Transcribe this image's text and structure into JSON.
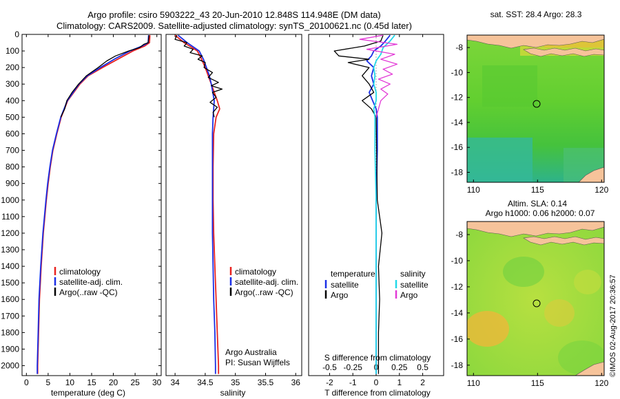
{
  "title": {
    "line1": "Argo profile: csiro 5903222_43 20-Jun-2010 12.848S 114.948E (DM data)",
    "line2": "Climatology: CARS2009. Satellite-adjusted climatology: synTS_20100621.nc (0.45d later)"
  },
  "colors": {
    "climatology": "#e8211e",
    "satellite": "#1a2ee6",
    "argo": "#000000",
    "sal_satellite": "#22d8e8",
    "sal_argo": "#e23ad6"
  },
  "depth_axis": {
    "label": "",
    "range": [
      2060,
      0
    ],
    "ticks": [
      0,
      100,
      200,
      300,
      400,
      500,
      600,
      700,
      800,
      900,
      1000,
      1100,
      1200,
      1300,
      1400,
      1500,
      1600,
      1700,
      1800,
      1900,
      2000
    ]
  },
  "chart_data": [
    {
      "type": "line",
      "id": "temperature",
      "xlabel": "temperature (deg C)",
      "ylabel": "",
      "xlim": [
        -1,
        31
      ],
      "ylim": [
        2060,
        0
      ],
      "xticks": [
        0,
        5,
        10,
        15,
        20,
        25,
        30
      ],
      "legend": [
        "climatology",
        "satellite-adj. clim.",
        "Argo(..raw -QC)"
      ],
      "series": [
        {
          "name": "climatology",
          "depth": [
            5,
            50,
            70,
            100,
            150,
            200,
            250,
            300,
            400,
            500,
            600,
            700,
            800,
            900,
            1000,
            1200,
            1400,
            1600,
            1800,
            2000,
            2050
          ],
          "values": [
            28.4,
            28.3,
            27.2,
            24.5,
            21,
            17.5,
            14.2,
            12.3,
            9.5,
            8.0,
            7.0,
            6.1,
            5.5,
            5.0,
            4.6,
            3.9,
            3.4,
            3.0,
            2.8,
            2.6,
            2.6
          ]
        },
        {
          "name": "satellite-adj. clim.",
          "depth": [
            5,
            50,
            70,
            100,
            150,
            200,
            250,
            300,
            400,
            500,
            600,
            700,
            800,
            900,
            1000,
            1200,
            1400,
            1600,
            1800,
            2000,
            2050
          ],
          "values": [
            28.1,
            28.0,
            26.6,
            23.8,
            20.2,
            17.0,
            14.0,
            12.1,
            9.4,
            7.9,
            6.9,
            6.0,
            5.4,
            4.9,
            4.5,
            3.8,
            3.3,
            2.9,
            2.7,
            2.5,
            2.5
          ]
        },
        {
          "name": "Argo(..raw -QC)",
          "depth": [
            5,
            50,
            60,
            80,
            100,
            130,
            160,
            200,
            250,
            300,
            350,
            400,
            450,
            500
          ],
          "values": [
            28.2,
            28.0,
            27.0,
            26.0,
            23.5,
            20.5,
            18.5,
            16.5,
            13.8,
            12.0,
            10.5,
            9.3,
            8.8,
            7.9
          ]
        }
      ]
    },
    {
      "type": "line",
      "id": "salinity",
      "xlabel": "salinity",
      "ylabel": "",
      "xlim": [
        33.85,
        36.1
      ],
      "ylim": [
        2060,
        0
      ],
      "xticks": [
        34,
        34.5,
        35,
        35.5,
        36
      ],
      "legend": [
        "climatology",
        "satellite-adj. clim.",
        "Argo(..raw -QC)"
      ],
      "annotation": [
        "Argo Australia",
        "PI: Susan Wijffels"
      ],
      "series": [
        {
          "name": "climatology",
          "depth": [
            5,
            50,
            100,
            150,
            200,
            250,
            300,
            400,
            450,
            500,
            600,
            800,
            1000,
            1200,
            1400,
            1600,
            1800,
            2000,
            2050
          ],
          "values": [
            34.0,
            34.15,
            34.37,
            34.44,
            34.5,
            34.55,
            34.6,
            34.7,
            34.74,
            34.68,
            34.64,
            34.63,
            34.63,
            34.64,
            34.66,
            34.68,
            34.7,
            34.72,
            34.72
          ]
        },
        {
          "name": "satellite-adj. clim.",
          "depth": [
            5,
            50,
            100,
            150,
            200,
            250,
            300,
            400,
            500,
            600,
            800,
            1000,
            1200,
            1400,
            1600,
            1800,
            2000,
            2050
          ],
          "values": [
            34.05,
            34.2,
            34.4,
            34.47,
            34.52,
            34.57,
            34.6,
            34.65,
            34.63,
            34.62,
            34.62,
            34.62,
            34.62,
            34.63,
            34.64,
            34.66,
            34.67,
            34.67
          ]
        },
        {
          "name": "Argo(..raw -QC)",
          "depth": [
            5,
            30,
            50,
            70,
            90,
            110,
            130,
            150,
            170,
            200,
            230,
            260,
            290,
            310,
            330,
            350,
            380,
            410,
            440,
            470,
            500
          ],
          "values": [
            34.03,
            34.0,
            34.2,
            34.15,
            34.3,
            34.25,
            34.45,
            34.38,
            34.5,
            34.48,
            34.62,
            34.55,
            34.72,
            34.6,
            34.78,
            34.62,
            34.68,
            34.58,
            34.7,
            34.63,
            34.65
          ]
        }
      ]
    },
    {
      "type": "line",
      "id": "difference",
      "xlabel": "T difference from climatology",
      "xlabel_top": "S difference from climatology",
      "ylabel": "",
      "xlim": [
        -2.9,
        2.9
      ],
      "ylim": [
        2060,
        0
      ],
      "xticks": [
        -2,
        -1,
        0,
        1,
        2
      ],
      "xtick_labels_S": [
        "-0.5",
        "-0.25",
        "0",
        "0.25",
        "0.5"
      ],
      "xtick_positions_S": [
        -2,
        -1,
        0,
        1,
        2
      ],
      "legend_headers": [
        "temperature",
        "salinity"
      ],
      "legend_T": [
        "satellite",
        "Argo"
      ],
      "legend_S": [
        "satellite",
        "Argo"
      ],
      "series": [
        {
          "name": "T satellite",
          "depth": [
            5,
            40,
            70,
            100,
            130,
            160,
            200,
            250,
            300,
            350,
            400,
            450,
            500,
            700,
            1000,
            1300,
            1600,
            2000,
            2050
          ],
          "values": [
            0.6,
            0.4,
            0.2,
            -0.1,
            -0.2,
            -0.4,
            -0.1,
            -0.2,
            -0.1,
            -0.3,
            -0.15,
            0.0,
            0.05,
            0.05,
            0.0,
            0.0,
            0.0,
            0.0,
            0.0
          ]
        },
        {
          "name": "T Argo",
          "depth": [
            5,
            40,
            70,
            100,
            130,
            150,
            170,
            200,
            250,
            300,
            350,
            400,
            450,
            500,
            1000,
            1200,
            1400,
            1600,
            1800,
            2000,
            2050
          ],
          "values": [
            0.3,
            0.2,
            -0.5,
            -1.8,
            -1.6,
            -0.3,
            -1.2,
            -0.3,
            -0.6,
            -0.3,
            -0.1,
            -0.6,
            -0.2,
            0.0,
            0.05,
            0.25,
            0.1,
            0.15,
            0.1,
            0.1,
            0.1
          ]
        },
        {
          "name": "S satellite",
          "depth": [
            5,
            40,
            80,
            120,
            160,
            200,
            250,
            300,
            350,
            400,
            450,
            500,
            700,
            1000,
            1400,
            1800,
            2050
          ],
          "values": [
            0.8,
            0.6,
            0.3,
            0.2,
            0.0,
            -0.1,
            -0.05,
            -0.1,
            0.0,
            0.0,
            -0.1,
            -0.05,
            -0.05,
            0.0,
            0.0,
            0.0,
            0.0
          ]
        },
        {
          "name": "S Argo",
          "depth": [
            5,
            30,
            60,
            90,
            120,
            150,
            180,
            210,
            240,
            270,
            300,
            330,
            360,
            400,
            450,
            500
          ],
          "values": [
            0.3,
            -0.7,
            0.9,
            -0.4,
            0.8,
            0.2,
            0.9,
            0.3,
            0.7,
            0.1,
            0.6,
            0.2,
            0.5,
            0.2,
            0.1,
            0.0
          ]
        }
      ]
    }
  ],
  "maps": [
    {
      "id": "sst-map",
      "title": "sat. SST: 28.4 Argo: 28.3",
      "subtitle": "",
      "xticks": [
        "110",
        "115",
        "120"
      ],
      "yticks": [
        "-8",
        "-10",
        "-12",
        "-14",
        "-16",
        "-18"
      ],
      "marker": {
        "lon": 114.948,
        "lat": -12.848
      }
    },
    {
      "id": "sla-map",
      "title": "Altim. SLA: 0.14",
      "subtitle": "Argo h1000: 0.06 h2000: 0.07",
      "xticks": [
        "110",
        "115",
        "120"
      ],
      "yticks": [
        "-8",
        "-10",
        "-12",
        "-14",
        "-16",
        "-18"
      ],
      "marker": {
        "lon": 114.948,
        "lat": -12.848
      }
    }
  ],
  "map_extent": {
    "lon": [
      109.5,
      120.2
    ],
    "lat": [
      -18.8,
      -7.0
    ]
  },
  "credit": "©IMOS 02-Aug-2017 20:36:57"
}
